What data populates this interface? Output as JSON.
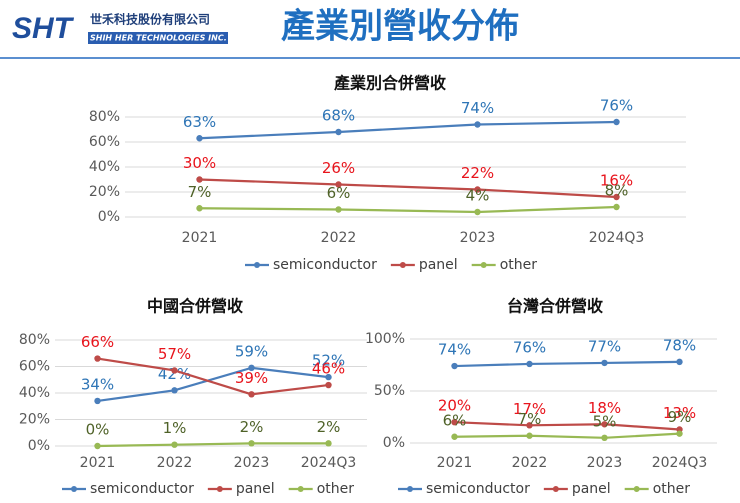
{
  "header": {
    "logo": "SHT",
    "company_zh": "世禾科技股份有限公司",
    "company_en": "SHIH HER TECHNOLOGIES INC.",
    "title": "產業別營收分佈"
  },
  "chart_data": [
    {
      "type": "line",
      "title": "產業別合併營收",
      "categories": [
        "2021",
        "2022",
        "2023",
        "2024Q3"
      ],
      "ylim": [
        0,
        80
      ],
      "yticks": [
        {
          "value": 0,
          "label": "0%"
        },
        {
          "value": 20,
          "label": "20%"
        },
        {
          "value": 40,
          "label": "40%"
        },
        {
          "value": 60,
          "label": "60%"
        },
        {
          "value": 80,
          "label": "80%"
        }
      ],
      "grid": true,
      "legend": "bottom",
      "series": [
        {
          "name": "semiconductor",
          "color": "#4a7ebb",
          "label_color": "#2e75b6",
          "values": [
            63,
            68,
            74,
            76
          ],
          "value_labels": [
            "63%",
            "68%",
            "74%",
            "76%"
          ]
        },
        {
          "name": "panel",
          "color": "#be4b48",
          "label_color": "#e8141c",
          "values": [
            30,
            26,
            22,
            16
          ],
          "value_labels": [
            "30%",
            "26%",
            "22%",
            "16%"
          ]
        },
        {
          "name": "other",
          "color": "#98b954",
          "label_color": "#4f6228",
          "values": [
            7,
            6,
            4,
            8
          ],
          "value_labels": [
            "7%",
            "6%",
            "4%",
            "8%"
          ]
        }
      ]
    },
    {
      "type": "line",
      "title": "中國合併營收",
      "categories": [
        "2021",
        "2022",
        "2023",
        "2024Q3"
      ],
      "ylim": [
        0,
        80
      ],
      "yticks": [
        {
          "value": 0,
          "label": "0%"
        },
        {
          "value": 20,
          "label": "20%"
        },
        {
          "value": 40,
          "label": "40%"
        },
        {
          "value": 60,
          "label": "60%"
        },
        {
          "value": 80,
          "label": "80%"
        }
      ],
      "grid": true,
      "legend": "bottom",
      "series": [
        {
          "name": "semiconductor",
          "color": "#4a7ebb",
          "label_color": "#2e75b6",
          "values": [
            34,
            42,
            59,
            52
          ],
          "value_labels": [
            "34%",
            "42%",
            "59%",
            "52%"
          ]
        },
        {
          "name": "panel",
          "color": "#be4b48",
          "label_color": "#e8141c",
          "values": [
            66,
            57,
            39,
            46
          ],
          "value_labels": [
            "66%",
            "57%",
            "39%",
            "46%"
          ]
        },
        {
          "name": "other",
          "color": "#98b954",
          "label_color": "#4f6228",
          "values": [
            0,
            1,
            2,
            2
          ],
          "value_labels": [
            "0%",
            "1%",
            "2%",
            "2%"
          ]
        }
      ]
    },
    {
      "type": "line",
      "title": "台灣合併營收",
      "categories": [
        "2021",
        "2022",
        "2023",
        "2024Q3"
      ],
      "ylim": [
        0,
        100
      ],
      "yticks": [
        {
          "value": 0,
          "label": "0%"
        },
        {
          "value": 50,
          "label": "50%"
        },
        {
          "value": 100,
          "label": "100%"
        }
      ],
      "grid": true,
      "legend": "bottom",
      "series": [
        {
          "name": "semiconductor",
          "color": "#4a7ebb",
          "label_color": "#2e75b6",
          "values": [
            74,
            76,
            77,
            78
          ],
          "value_labels": [
            "74%",
            "76%",
            "77%",
            "78%"
          ]
        },
        {
          "name": "panel",
          "color": "#be4b48",
          "label_color": "#e8141c",
          "values": [
            20,
            17,
            18,
            13
          ],
          "value_labels": [
            "20%",
            "17%",
            "18%",
            "13%"
          ]
        },
        {
          "name": "other",
          "color": "#98b954",
          "label_color": "#4f6228",
          "values": [
            6,
            7,
            5,
            9
          ],
          "value_labels": [
            "6%",
            "7%",
            "5%",
            "9%"
          ]
        }
      ]
    }
  ]
}
